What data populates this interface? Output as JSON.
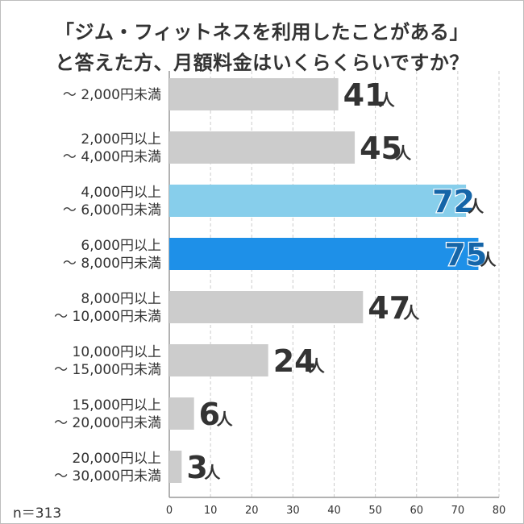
{
  "title_lines": [
    "「ジム・フィットネスを利用したことがある」",
    "と答えた方、月額料金はいくらくらいですか？"
  ],
  "sample_note": "n＝313",
  "unit_suffix": "人",
  "colors": {
    "default_bar": "#cccccc",
    "highlight_light": "#87ceeb",
    "highlight_dark": "#1e90e8",
    "label_dark": "#333333",
    "label_blue": "#1565a8",
    "grid": "#cccccc"
  },
  "chart_data": {
    "type": "bar",
    "orientation": "horizontal",
    "categories": [
      [
        "〜 2,000円未満"
      ],
      [
        "2,000円以上",
        "〜 4,000円未満"
      ],
      [
        "4,000円以上",
        "〜 6,000円未満"
      ],
      [
        "6,000円以上",
        "〜 8,000円未満"
      ],
      [
        "8,000円以上",
        "〜 10,000円未満"
      ],
      [
        "10,000円以上",
        "〜 15,000円未満"
      ],
      [
        "15,000円以上",
        "〜 20,000円未満"
      ],
      [
        "20,000円以上",
        "〜 30,000円未満"
      ]
    ],
    "values": [
      41,
      45,
      72,
      75,
      47,
      24,
      6,
      3
    ],
    "highlight": [
      null,
      null,
      "light",
      "dark",
      null,
      null,
      null,
      null
    ],
    "xlim": [
      0,
      80
    ],
    "xticks": [
      0,
      10,
      20,
      30,
      40,
      50,
      60,
      70,
      80
    ],
    "grid": "vertical dashed"
  }
}
